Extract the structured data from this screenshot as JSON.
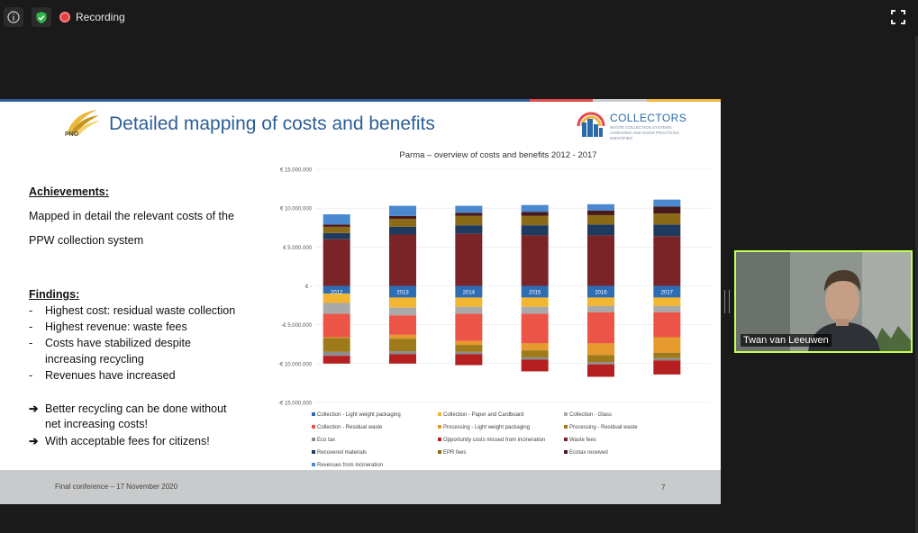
{
  "topbar": {
    "recording_label": "Recording",
    "info_icon": "info-icon",
    "shield_icon": "shield-check-icon",
    "fullscreen_icon": "fullscreen-icon"
  },
  "slide": {
    "title": "Detailed mapping of costs and benefits",
    "pno_logo_text": "PNO",
    "collectors_name": "COLLECTORS",
    "collectors_subtitle": "WASTE COLLECTION SYSTEMS ASSESSED AND GOOD PRACTICES IDENTIFIED",
    "achievements_heading": "Achievements:",
    "achievements_line1": "Mapped in detail the relevant costs of the",
    "achievements_line2": "PPW collection system",
    "findings_heading": "Findings:",
    "findings": [
      {
        "bullet": "-",
        "text": "Highest cost: residual waste collection"
      },
      {
        "bullet": "-",
        "text": "Highest revenue: waste fees"
      },
      {
        "bullet": "-",
        "text": "Costs have stabilized despite"
      },
      {
        "bullet": "",
        "text": "increasing recycling"
      },
      {
        "bullet": "-",
        "text": "Revenues have increased"
      }
    ],
    "conclusions": [
      {
        "arrow": "➔",
        "text": "Better recycling can be done without"
      },
      {
        "arrow": "",
        "text": "net increasing costs!"
      },
      {
        "arrow": "➔",
        "text": "With acceptable fees for citizens!"
      }
    ],
    "footer_text": "Final conference – 17 November 2020",
    "page_number": "7",
    "stripe_colors": [
      "#2d5e96",
      "#e04a4a",
      "#c9cacb",
      "#f0b43c"
    ]
  },
  "chart_data": {
    "type": "bar",
    "stacked": true,
    "title": "Parma – overview of costs and benefits 2012 - 2017",
    "categories": [
      "2012",
      "2013",
      "2014",
      "2015",
      "2016",
      "2017"
    ],
    "ylim": [
      -15000000,
      15000000
    ],
    "yticks": [
      15000000,
      10000000,
      5000000,
      0,
      -5000000,
      -10000000,
      -15000000
    ],
    "ytick_labels": [
      "€ 15.000.000",
      "€ 10.000.000",
      "€ 5.000.000",
      "€ -",
      "-€ 5.000.000",
      "-€ 10.000.000",
      "-€ 15.000.000"
    ],
    "series": [
      {
        "name": "Collection - Light weight packaging",
        "color": "#2e6db4",
        "values": [
          -1000000,
          -1500000,
          -1500000,
          -1500000,
          -1500000,
          -1500000
        ]
      },
      {
        "name": "Collection - Paper and Cardboard",
        "color": "#f2b632",
        "values": [
          -1200000,
          -1300000,
          -1200000,
          -1200000,
          -1100000,
          -1100000
        ]
      },
      {
        "name": "Collection - Glass",
        "color": "#a9a9a9",
        "values": [
          -1400000,
          -1000000,
          -900000,
          -900000,
          -800000,
          -800000
        ]
      },
      {
        "name": "Collection - Residual waste",
        "color": "#eb5447",
        "values": [
          -3000000,
          -2500000,
          -3500000,
          -3800000,
          -4000000,
          -3200000
        ]
      },
      {
        "name": "Processing - Light weight packaging",
        "color": "#e69a2e",
        "values": [
          -100000,
          -500000,
          -500000,
          -900000,
          -1500000,
          -2000000
        ]
      },
      {
        "name": "Processing - Residual waste",
        "color": "#9e7a1a",
        "values": [
          -1800000,
          -1600000,
          -900000,
          -900000,
          -900000,
          -700000
        ]
      },
      {
        "name": "Eco tax",
        "color": "#8c8c8c",
        "values": [
          -500000,
          -400000,
          -300000,
          -300000,
          -300000,
          -300000
        ]
      },
      {
        "name": "Opportunity costs missed from incineration",
        "color": "#b51f1f",
        "values": [
          -1000000,
          -1200000,
          -1400000,
          -1500000,
          -1600000,
          -1800000
        ]
      },
      {
        "name": "Waste fees",
        "color": "#7a2428",
        "values": [
          6000000,
          6600000,
          6700000,
          6500000,
          6500000,
          6400000
        ]
      },
      {
        "name": "Recovered materials",
        "color": "#1f3a5f",
        "values": [
          800000,
          1000000,
          1100000,
          1300000,
          1400000,
          1500000
        ]
      },
      {
        "name": "EPR fees",
        "color": "#8a6a16",
        "values": [
          800000,
          1000000,
          1200000,
          1200000,
          1200000,
          1400000
        ]
      },
      {
        "name": "Ecotax received",
        "color": "#4a1a1a",
        "values": [
          300000,
          400000,
          400000,
          500000,
          600000,
          900000
        ]
      },
      {
        "name": "Revenues from incineration",
        "color": "#4a88d0",
        "values": [
          1300000,
          1300000,
          900000,
          900000,
          800000,
          900000
        ]
      }
    ],
    "legend_position": "bottom"
  },
  "video": {
    "participant_name": "Twan van Leeuwen"
  }
}
